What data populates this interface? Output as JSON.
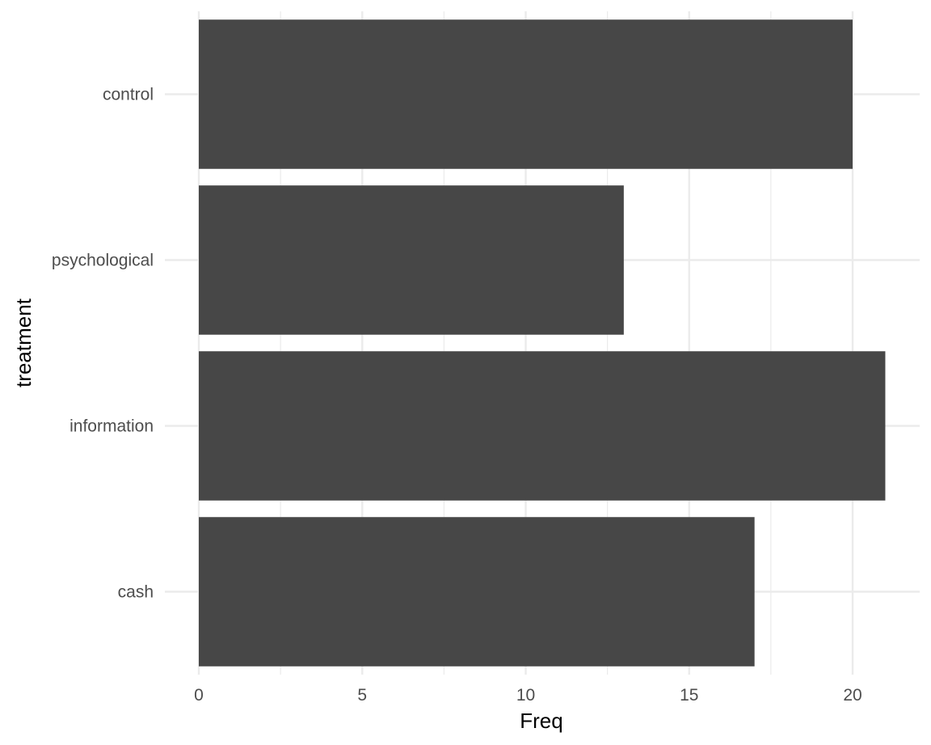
{
  "chart_data": {
    "type": "bar",
    "orientation": "horizontal",
    "categories": [
      "cash",
      "information",
      "psychological",
      "control"
    ],
    "values": [
      17,
      21,
      13,
      20
    ],
    "title": "",
    "xlabel": "Freq",
    "ylabel": "treatment",
    "xlim": [
      0,
      22
    ],
    "x_ticks": [
      0,
      5,
      10,
      15,
      20
    ],
    "grid": true,
    "bar_color": "#474747",
    "grid_color": "#ebebeb"
  }
}
